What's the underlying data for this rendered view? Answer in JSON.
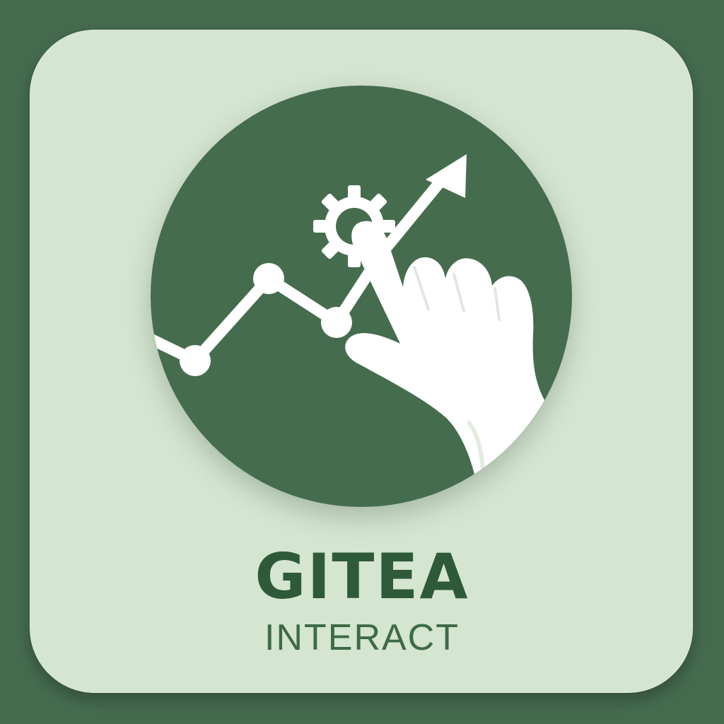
{
  "app": {
    "name": "GITEA",
    "subtitle": "INTERACT"
  },
  "icons": {
    "emblem": "trend-chart-with-pointing-hand-and-gear",
    "gear": "gear-icon",
    "hand": "pointing-hand-icon",
    "arrow": "trend-arrow-icon"
  },
  "colors": {
    "background": "#466c4e",
    "tile": "#d4e5d0",
    "circle": "#466c4e",
    "glyph": "#ffffff",
    "title": "#2f5a38"
  }
}
